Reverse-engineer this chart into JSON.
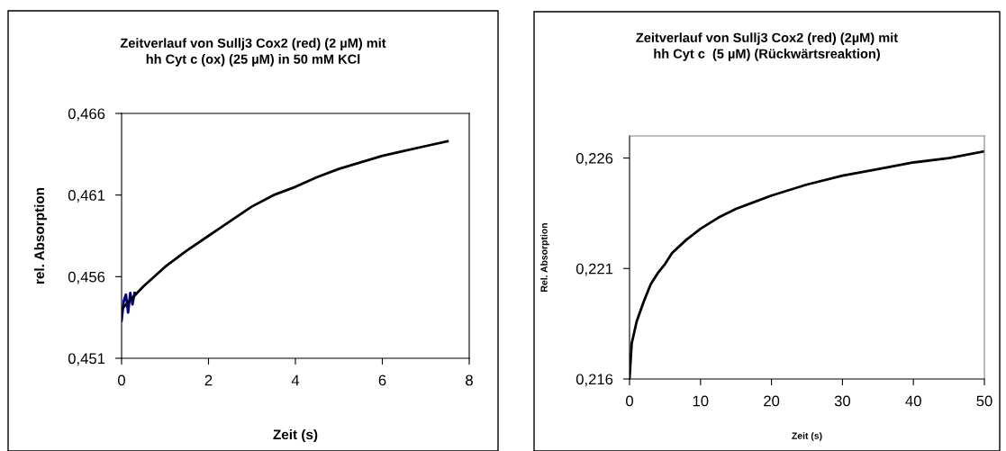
{
  "chart_data": [
    {
      "type": "line",
      "title": "Zeitverlauf von Sullj3 Cox2 (red) (2 µM) mit\nhh Cyt c (ox) (25 µM) in 50 mM KCl",
      "xlabel": "Zeit (s)",
      "ylabel": "rel. Absorption",
      "xlim": [
        0,
        8
      ],
      "xticks": [
        0,
        2,
        4,
        6,
        8
      ],
      "ylim": [
        0.451,
        0.466
      ],
      "yticks": [
        {
          "value": 0.451,
          "label": "0,451"
        },
        {
          "value": 0.456,
          "label": "0,456"
        },
        {
          "value": 0.461,
          "label": "0,461"
        },
        {
          "value": 0.466,
          "label": "0,466"
        }
      ],
      "grid": false,
      "legend": false,
      "marker": "none",
      "line_style": "solid",
      "series": [
        {
          "color": "#000080",
          "x": [
            0,
            0.05,
            0.1,
            0.15,
            0.2,
            0.25,
            0.3
          ],
          "values": [
            0.4533,
            0.4545,
            0.4549,
            0.4538,
            0.455,
            0.4543,
            0.455
          ]
        },
        {
          "color": "#000000",
          "x": [
            0,
            0.5,
            1,
            1.5,
            2,
            2.5,
            3,
            3.5,
            4,
            4.5,
            5,
            5.5,
            6,
            6.5,
            7,
            7.5
          ],
          "values": [
            0.454,
            0.4554,
            0.4566,
            0.4576,
            0.4585,
            0.4594,
            0.4603,
            0.461,
            0.4615,
            0.4621,
            0.4626,
            0.463,
            0.4634,
            0.4637,
            0.464,
            0.4643
          ]
        }
      ]
    },
    {
      "type": "line",
      "title": "Zeitverlauf von Sullj3 Cox2 (red) (2µM) mit\nhh Cyt c  (5 µM) (Rückwärtsreaktion)",
      "xlabel": "Zeit (s)",
      "ylabel": "Rel. Absorption",
      "xlim": [
        0,
        50
      ],
      "xticks": [
        0,
        10,
        20,
        30,
        40,
        50
      ],
      "ylim": [
        0.216,
        0.227
      ],
      "yticks": [
        {
          "value": 0.216,
          "label": "0,216"
        },
        {
          "value": 0.221,
          "label": "0,221"
        },
        {
          "value": 0.226,
          "label": "0,226"
        }
      ],
      "grid": false,
      "legend": false,
      "marker": "none",
      "line_style": "solid",
      "series": [
        {
          "color": "#000000",
          "x": [
            0,
            0.3,
            1,
            2,
            3,
            4,
            5,
            6,
            8,
            10,
            12.5,
            15,
            17.5,
            20,
            25,
            30,
            35,
            40,
            45,
            50
          ],
          "values": [
            0.216,
            0.2176,
            0.2186,
            0.2195,
            0.2203,
            0.2208,
            0.2212,
            0.2217,
            0.2223,
            0.2228,
            0.2233,
            0.2237,
            0.224,
            0.2243,
            0.2248,
            0.2252,
            0.2255,
            0.2258,
            0.226,
            0.2263
          ]
        }
      ]
    }
  ]
}
